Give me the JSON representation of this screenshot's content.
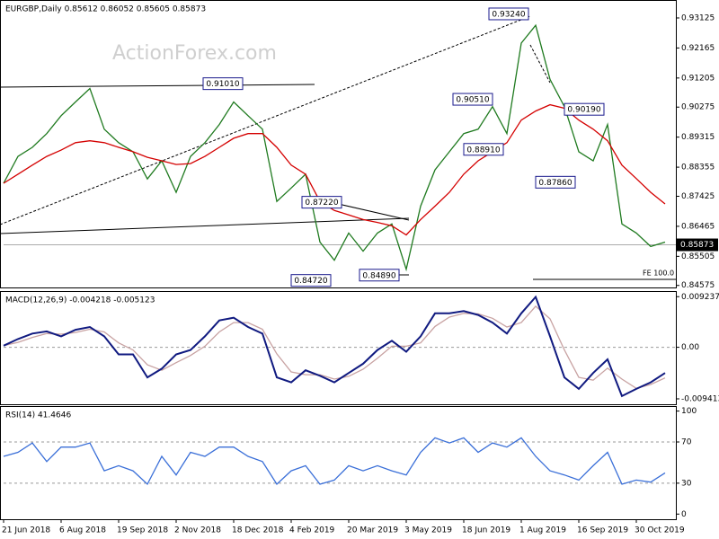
{
  "chart_data": [
    {
      "type": "line",
      "title": "EURGBP,Daily  0.85612 0.86052 0.85605 0.85873",
      "watermark": "ActionForex.com",
      "fe_label": "FE 100.0",
      "x": [
        0,
        8,
        16,
        24,
        32,
        40,
        48,
        56,
        64,
        72,
        80,
        88,
        96,
        104,
        112,
        120,
        128,
        136,
        144,
        152,
        160,
        168,
        176,
        184,
        192,
        200,
        208,
        216,
        224,
        232,
        240,
        248,
        256,
        264,
        272,
        280,
        288,
        296,
        304,
        312,
        320,
        328,
        336,
        344,
        352,
        360,
        368
      ],
      "xlim": [
        0,
        374
      ],
      "ylim": [
        0.8451,
        0.9367
      ],
      "grid": false,
      "yticks": [
        0.93125,
        0.92165,
        0.91205,
        0.90275,
        0.89315,
        0.88355,
        0.87425,
        0.86465,
        0.85505,
        0.84575
      ],
      "series": [
        {
          "name": "Close",
          "color": "#1f7a1f",
          "values": [
            0.8784,
            0.887,
            0.8899,
            0.8943,
            0.9,
            0.9044,
            0.9087,
            0.8957,
            0.8914,
            0.8885,
            0.8798,
            0.8856,
            0.8755,
            0.887,
            0.8914,
            0.8972,
            0.9044,
            0.9,
            0.8957,
            0.8726,
            0.8769,
            0.8813,
            0.8596,
            0.8538,
            0.8625,
            0.8567,
            0.8625,
            0.8654,
            0.8509,
            0.8711,
            0.8827,
            0.8885,
            0.8943,
            0.8957,
            0.9029,
            0.8943,
            0.9232,
            0.9289,
            0.9116,
            0.9029,
            0.8885,
            0.8856,
            0.8972,
            0.8654,
            0.8625,
            0.8582,
            0.8596
          ]
        },
        {
          "name": "MA",
          "color": "#d40000",
          "values": [
            0.8784,
            0.8813,
            0.8842,
            0.887,
            0.889,
            0.8914,
            0.892,
            0.8914,
            0.8899,
            0.8885,
            0.8867,
            0.8856,
            0.8844,
            0.8847,
            0.887,
            0.8899,
            0.8928,
            0.8943,
            0.8943,
            0.8899,
            0.8842,
            0.8813,
            0.8726,
            0.8697,
            0.8683,
            0.8668,
            0.8659,
            0.8648,
            0.8619,
            0.8668,
            0.8711,
            0.8755,
            0.8813,
            0.8856,
            0.8885,
            0.8914,
            0.8986,
            0.9015,
            0.9035,
            0.9024,
            0.8986,
            0.8957,
            0.892,
            0.8842,
            0.8799,
            0.8755,
            0.8718
          ]
        }
      ],
      "annotations": [
        {
          "label": "0.93240",
          "value": 0.9324,
          "x": 292
        },
        {
          "label": "0.91010",
          "value": 0.9101,
          "x": 133
        },
        {
          "label": "0.90510",
          "value": 0.9051,
          "x": 272
        },
        {
          "label": "0.90190",
          "value": 0.9019,
          "x": 334
        },
        {
          "label": "0.88910",
          "value": 0.8891,
          "x": 278
        },
        {
          "label": "0.87860",
          "value": 0.8786,
          "x": 318
        },
        {
          "label": "0.87220",
          "value": 0.8722,
          "x": 188
        },
        {
          "label": "0.84720",
          "value": 0.8472,
          "x": 182
        },
        {
          "label": "0.84890",
          "value": 0.8489,
          "x": 220
        }
      ],
      "last": {
        "label": "0.85873",
        "value": 0.85873
      }
    },
    {
      "type": "line",
      "title": "MACD(12,26,9) -0.004218 -0.005123",
      "x": [
        0,
        8,
        16,
        24,
        32,
        40,
        48,
        56,
        64,
        72,
        80,
        88,
        96,
        104,
        112,
        120,
        128,
        136,
        144,
        152,
        160,
        168,
        176,
        184,
        192,
        200,
        208,
        216,
        224,
        232,
        240,
        248,
        256,
        264,
        272,
        280,
        288,
        296,
        304,
        312,
        320,
        328,
        336,
        344,
        352,
        360,
        368
      ],
      "xlim": [
        0,
        374
      ],
      "ylim": [
        -0.0104,
        0.0101
      ],
      "grid": true,
      "yticks": [
        0.009237,
        {
          "value": 0,
          "label": "0.00"
        },
        -0.009413
      ],
      "series": [
        {
          "name": "Signal",
          "color": "#c8a2a2",
          "values": [
            0.0003,
            0.0009,
            0.0018,
            0.0025,
            0.0024,
            0.0027,
            0.0033,
            0.0028,
            0.0008,
            -0.0005,
            -0.0032,
            -0.0042,
            -0.0028,
            -0.0015,
            0.0002,
            0.0028,
            0.0045,
            0.0045,
            0.0033,
            -0.0012,
            -0.0045,
            -0.005,
            -0.005,
            -0.0058,
            -0.0053,
            -0.004,
            -0.002,
            0.0002,
            0.0002,
            0.0008,
            0.0038,
            0.0055,
            0.0062,
            0.0061,
            0.0053,
            0.0037,
            0.0045,
            0.0075,
            0.0052,
            -0.0005,
            -0.0055,
            -0.006,
            -0.0038,
            -0.0058,
            -0.0075,
            -0.0068,
            -0.0056
          ]
        },
        {
          "name": "MACD",
          "color": "#101a80",
          "values": [
            0.0003,
            0.0015,
            0.0025,
            0.0029,
            0.002,
            0.0032,
            0.0037,
            0.002,
            -0.0013,
            -0.0013,
            -0.0055,
            -0.0039,
            -0.0013,
            -0.0005,
            0.002,
            0.0049,
            0.0054,
            0.0037,
            0.0025,
            -0.0055,
            -0.0064,
            -0.0042,
            -0.0052,
            -0.0064,
            -0.0047,
            -0.003,
            -0.0005,
            0.0012,
            -0.0008,
            0.002,
            0.0062,
            0.0062,
            0.0066,
            0.0059,
            0.0045,
            0.0025,
            0.0062,
            0.0092,
            0.002,
            -0.0055,
            -0.0076,
            -0.0047,
            -0.0022,
            -0.0089,
            -0.0076,
            -0.0064,
            -0.0047
          ]
        }
      ]
    },
    {
      "type": "line",
      "title": "RSI(14) 41.4646",
      "x": [
        0,
        8,
        16,
        24,
        32,
        40,
        48,
        56,
        64,
        72,
        80,
        88,
        96,
        104,
        112,
        120,
        128,
        136,
        144,
        152,
        160,
        168,
        176,
        184,
        192,
        200,
        208,
        216,
        224,
        232,
        240,
        248,
        256,
        264,
        272,
        280,
        288,
        296,
        304,
        312,
        320,
        328,
        336,
        344,
        352,
        360,
        368
      ],
      "xlim": [
        0,
        374
      ],
      "ylim": [
        -5,
        104
      ],
      "grid": true,
      "yticks": [
        100,
        70,
        30,
        0
      ],
      "xticks": [
        {
          "value": 0,
          "label": "21 Jun 2018"
        },
        {
          "value": 32,
          "label": "6 Aug 2018"
        },
        {
          "value": 64,
          "label": "19 Sep 2018"
        },
        {
          "value": 96,
          "label": "2 Nov 2018"
        },
        {
          "value": 128,
          "label": "18 Dec 2018"
        },
        {
          "value": 160,
          "label": "4 Feb 2019"
        },
        {
          "value": 192,
          "label": "20 Mar 2019"
        },
        {
          "value": 224,
          "label": "3 May 2019"
        },
        {
          "value": 256,
          "label": "18 Jun 2019"
        },
        {
          "value": 288,
          "label": "1 Aug 2019"
        },
        {
          "value": 320,
          "label": "16 Sep 2019"
        },
        {
          "value": 352,
          "label": "30 Oct 2019"
        }
      ],
      "series": [
        {
          "name": "RSI",
          "color": "#3a6fd8",
          "values": [
            56,
            60,
            69,
            51,
            65,
            65,
            69,
            42,
            47,
            42,
            29,
            56,
            38,
            60,
            56,
            65,
            65,
            56,
            51,
            29,
            42,
            47,
            29,
            33,
            47,
            42,
            47,
            42,
            38,
            60,
            74,
            69,
            74,
            60,
            69,
            65,
            74,
            56,
            42,
            38,
            33,
            47,
            60,
            29,
            33,
            31,
            40
          ]
        }
      ]
    }
  ]
}
